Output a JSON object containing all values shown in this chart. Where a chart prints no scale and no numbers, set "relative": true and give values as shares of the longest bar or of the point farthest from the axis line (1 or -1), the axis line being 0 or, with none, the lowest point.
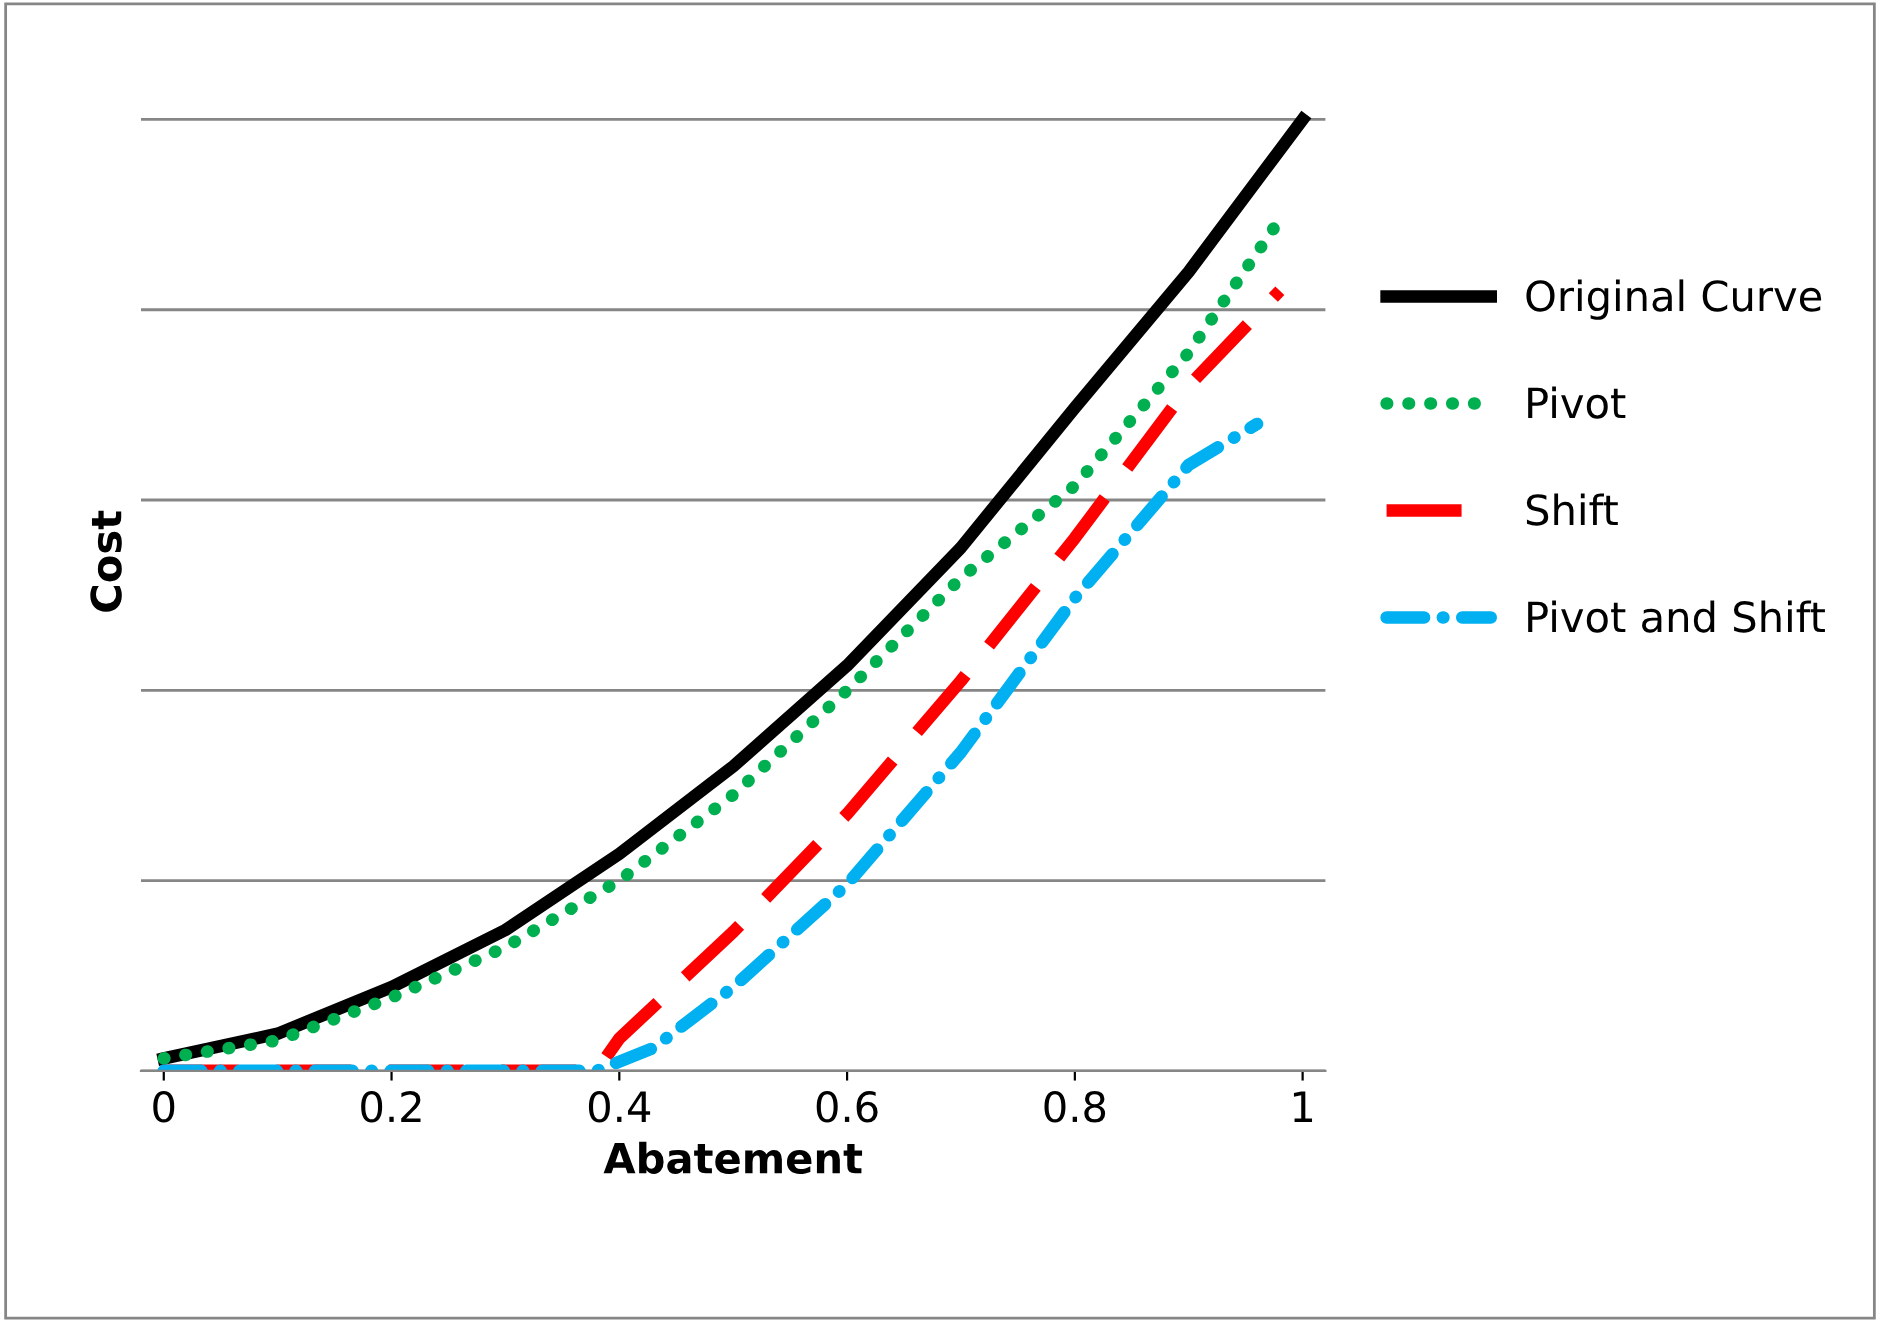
{
  "chart_data": {
    "type": "line",
    "relative": true,
    "xlabel": "Abatement",
    "ylabel": "Cost",
    "xlim": [
      -0.02,
      1.02
    ],
    "xticks": [
      0,
      0.2,
      0.4,
      0.6,
      0.8,
      1
    ],
    "grid": "y",
    "legend": "right",
    "marker": "none",
    "series": [
      {
        "name": "Original Curve",
        "color": "#000000",
        "line_style": "solid",
        "x": [
          0,
          0.1,
          0.2,
          0.3,
          0.4,
          0.5,
          0.6,
          0.7,
          0.8,
          0.9,
          1.0
        ],
        "values": [
          0.013,
          0.039,
          0.088,
          0.148,
          0.228,
          0.32,
          0.426,
          0.55,
          0.697,
          0.84,
          1.0
        ]
      },
      {
        "name": "Pivot",
        "color": "#00b050",
        "line_style": "dotted",
        "x": [
          0,
          0.1,
          0.2,
          0.3,
          0.4,
          0.5,
          0.6,
          0.7,
          0.8,
          0.9,
          0.98
        ],
        "values": [
          0.013,
          0.032,
          0.077,
          0.13,
          0.2,
          0.29,
          0.4,
          0.518,
          0.615,
          0.755,
          0.895
        ]
      },
      {
        "name": "Shift",
        "color": "#ff0000",
        "line_style": "dashed",
        "x": [
          0,
          0.38,
          0.4,
          0.5,
          0.6,
          0.7,
          0.8,
          0.9,
          0.98
        ],
        "values": [
          0,
          0,
          0.034,
          0.146,
          0.27,
          0.41,
          0.56,
          0.72,
          0.82
        ]
      },
      {
        "name": "Pivot and Shift",
        "color": "#00b0f0",
        "line_style": "dashdot",
        "x": [
          0,
          0.38,
          0.43,
          0.5,
          0.6,
          0.7,
          0.8,
          0.9,
          0.96
        ],
        "values": [
          0,
          0,
          0.024,
          0.088,
          0.196,
          0.335,
          0.497,
          0.637,
          0.68
        ]
      }
    ]
  }
}
